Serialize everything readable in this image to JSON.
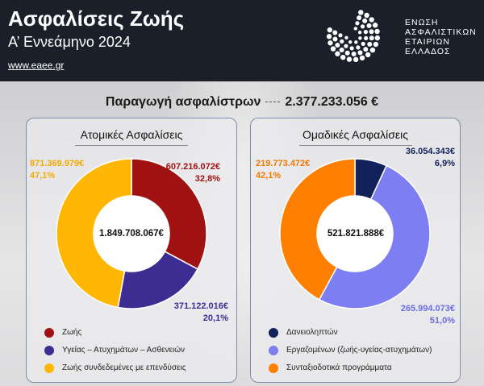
{
  "header": {
    "title": "Ασφαλίσεις Ζωής",
    "subtitle": "Α’ Εννεάμηνο 2024",
    "link": "www.eaee.gr",
    "logo_lines": [
      "ΕΝΩΣΗ",
      "ΑΣΦΑΛΙΣΤΙΚΩΝ",
      "ΕΤΑΙΡΙΩΝ",
      "ΕΛΛΑΔΟΣ"
    ]
  },
  "total": {
    "label": "Παραγωγή ασφαλίστρων",
    "value": "2.377.233.056 €"
  },
  "chart_data": [
    {
      "type": "pie",
      "title": "Ατομικές Ασφαλίσεις",
      "center_label": "1.849.708.067€",
      "slices": [
        {
          "name": "Ζωής",
          "value": 607216072,
          "value_label": "607.216.072€",
          "percent_label": "32,8%",
          "color": "#a01212"
        },
        {
          "name": "Υγείας – Ατυχημάτων – Ασθενειών",
          "value": 371122016,
          "value_label": "371.122.016€",
          "percent_label": "20,1%",
          "color": "#3d2c92"
        },
        {
          "name": "Ζωής συνδεδεμένες με επενδύσεις",
          "value": 871369979,
          "value_label": "871.369.979€",
          "percent_label": "47,1%",
          "color": "#ffb703"
        }
      ]
    },
    {
      "type": "pie",
      "title": "Ομαδικές Ασφαλίσεις",
      "center_label": "521.821.888€",
      "slices": [
        {
          "name": "Δανειοληπτών",
          "value": 36054343,
          "value_label": "36.054.343€",
          "percent_label": "6,9%",
          "color": "#12225a"
        },
        {
          "name": "Εργαζομένων (ζωής-υγείας-ατυχημάτων)",
          "value": 265994073,
          "value_label": "265.994.073€",
          "percent_label": "51,0%",
          "color": "#7c7ef2"
        },
        {
          "name": "Συνταξιοδοτικά προγράμματα",
          "value": 219773472,
          "value_label": "219.773.472€",
          "percent_label": "42,1%",
          "color": "#ff7f00"
        }
      ]
    }
  ]
}
